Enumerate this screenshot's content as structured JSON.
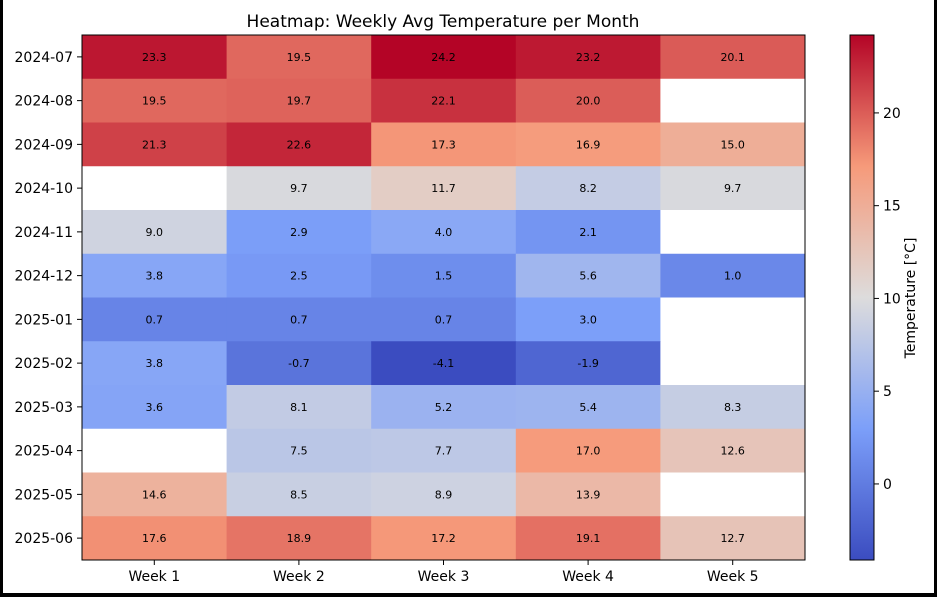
{
  "chart_data": {
    "type": "heatmap",
    "title": "Heatmap: Weekly Avg Temperature per Month",
    "xlabel": "",
    "ylabel": "",
    "colorbar_label": "Temperature [°C]",
    "colormap": "coolwarm",
    "vmin": -4.1,
    "vmax": 24.2,
    "colorbar_ticks": [
      "0",
      "5",
      "10",
      "15",
      "20"
    ],
    "x_categories": [
      "Week 1",
      "Week 2",
      "Week 3",
      "Week 4",
      "Week 5"
    ],
    "y_categories": [
      "2024-07",
      "2024-08",
      "2024-09",
      "2024-10",
      "2024-11",
      "2024-12",
      "2025-01",
      "2025-02",
      "2025-03",
      "2025-04",
      "2025-05",
      "2025-06"
    ],
    "values": [
      [
        23.3,
        19.5,
        24.2,
        23.2,
        20.1
      ],
      [
        19.5,
        19.7,
        22.1,
        20.0,
        null
      ],
      [
        21.3,
        22.6,
        17.3,
        16.9,
        15.0
      ],
      [
        null,
        9.7,
        11.7,
        8.2,
        9.7
      ],
      [
        9.0,
        2.9,
        4.0,
        2.1,
        null
      ],
      [
        3.8,
        2.5,
        1.5,
        5.6,
        1.0
      ],
      [
        0.7,
        0.7,
        0.7,
        3.0,
        null
      ],
      [
        3.8,
        -0.7,
        -4.1,
        -1.9,
        null
      ],
      [
        3.6,
        8.1,
        5.2,
        5.4,
        8.3
      ],
      [
        null,
        7.5,
        7.7,
        17.0,
        12.6
      ],
      [
        14.6,
        8.5,
        8.9,
        13.9,
        null
      ],
      [
        17.6,
        18.9,
        17.2,
        19.1,
        12.7
      ]
    ]
  }
}
